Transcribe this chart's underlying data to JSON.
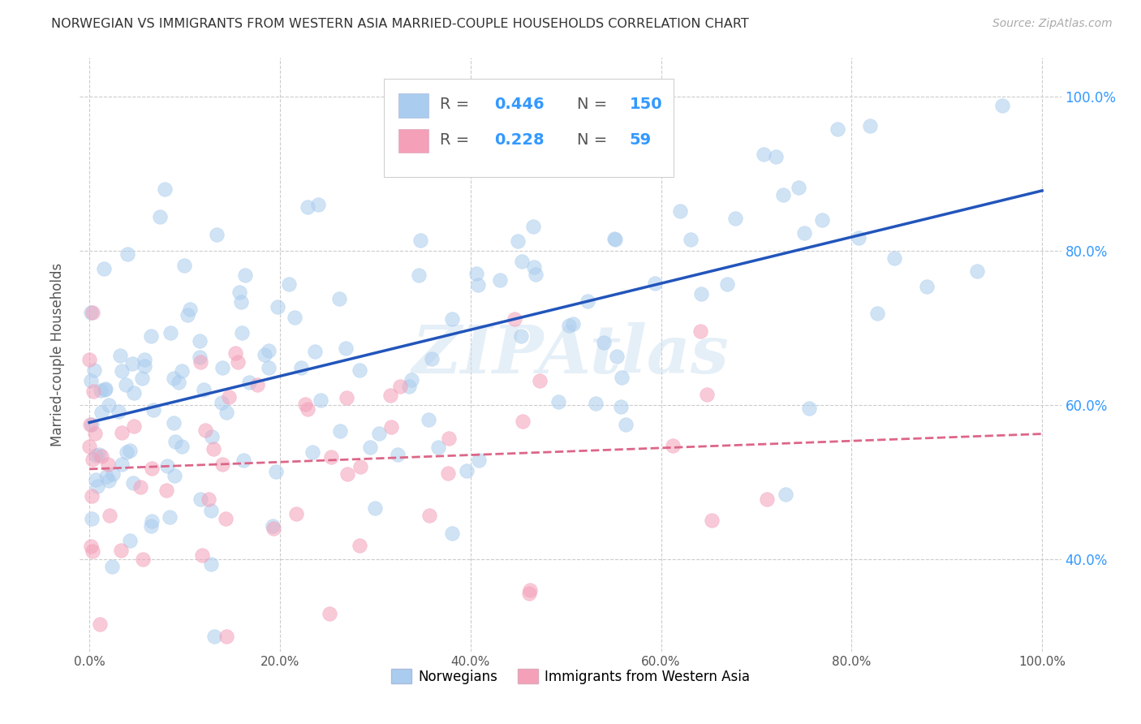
{
  "title": "NORWEGIAN VS IMMIGRANTS FROM WESTERN ASIA MARRIED-COUPLE HOUSEHOLDS CORRELATION CHART",
  "source": "Source: ZipAtlas.com",
  "ylabel": "Married-couple Households",
  "background_color": "#ffffff",
  "grid_color": "#cccccc",
  "norwegian_color": "#aaccee",
  "immigrant_color": "#f4a0b8",
  "norwegian_line_color": "#2255bb",
  "immigrant_line_color": "#dd6688",
  "legend_R1": "0.446",
  "legend_N1": "150",
  "legend_R2": "0.228",
  "legend_N2": "59",
  "num_color": "#3399ff",
  "label_color": "#555555",
  "ytick_color": "#3399ff",
  "source_color": "#aaaaaa",
  "title_color": "#333333",
  "watermark_color": "#cce0f0",
  "ylim": [
    0.28,
    1.05
  ],
  "xlim": [
    -0.01,
    1.02
  ]
}
